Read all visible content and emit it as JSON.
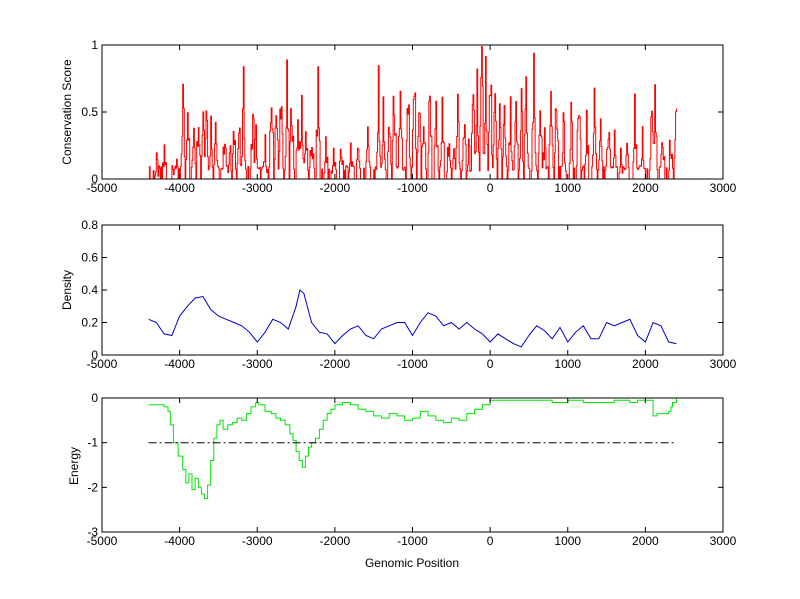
{
  "colors": {
    "background": "#ffffff",
    "axes": "#000000",
    "conservation": "#ff0000",
    "density": "#0000c8",
    "energy": "#00e600",
    "threshold": "#000000"
  },
  "chart_data": [
    {
      "type": "line",
      "xlabel": "",
      "ylabel": "Conservation Score",
      "xlim": [
        -5000,
        3000
      ],
      "ylim": [
        0,
        1
      ],
      "xticks": [
        -5000,
        -4000,
        -3000,
        -2000,
        -1000,
        0,
        1000,
        2000,
        3000
      ],
      "yticks": [
        0,
        0.5,
        1
      ],
      "xtick_labels": [
        "-5000",
        "-4000",
        "-3000",
        "-2000",
        "-1000",
        "0",
        "1000",
        "2000",
        "3000"
      ],
      "ytick_labels": [
        "0",
        "0.5",
        "1"
      ],
      "grid": false,
      "series": [
        {
          "color": "#ff0000",
          "x_range": [
            -4400,
            2400
          ],
          "step": 10,
          "baseline": 0.1,
          "peaks": [
            [
              -4300,
              0.1
            ],
            [
              -4200,
              0.2
            ],
            [
              -4060,
              0.15
            ],
            [
              -3960,
              0.74
            ],
            [
              -3900,
              0.72
            ],
            [
              -3820,
              0.55
            ],
            [
              -3760,
              0.65
            ],
            [
              -3700,
              0.7
            ],
            [
              -3660,
              0.8
            ],
            [
              -3600,
              0.45
            ],
            [
              -3540,
              0.55
            ],
            [
              -3420,
              0.45
            ],
            [
              -3360,
              0.25
            ],
            [
              -3300,
              0.4
            ],
            [
              -3240,
              0.45
            ],
            [
              -3180,
              0.75
            ],
            [
              -3060,
              0.6
            ],
            [
              -3020,
              0.35
            ],
            [
              -2900,
              0.25
            ],
            [
              -2820,
              0.8
            ],
            [
              -2760,
              0.75
            ],
            [
              -2700,
              0.8
            ],
            [
              -2620,
              0.8
            ],
            [
              -2560,
              0.72
            ],
            [
              -2480,
              0.55
            ],
            [
              -2430,
              0.6
            ],
            [
              -2380,
              0.45
            ],
            [
              -2300,
              0.35
            ],
            [
              -2220,
              0.8
            ],
            [
              -2120,
              0.25
            ],
            [
              -2020,
              0.2
            ],
            [
              -1920,
              0.2
            ],
            [
              -1800,
              0.25
            ],
            [
              -1700,
              0.3
            ],
            [
              -1580,
              0.55
            ],
            [
              -1440,
              0.75
            ],
            [
              -1380,
              0.55
            ],
            [
              -1300,
              0.45
            ],
            [
              -1240,
              0.8
            ],
            [
              -1160,
              0.8
            ],
            [
              -1060,
              0.7
            ],
            [
              -980,
              0.9
            ],
            [
              -920,
              0.75
            ],
            [
              -860,
              0.55
            ],
            [
              -780,
              0.8
            ],
            [
              -700,
              0.5
            ],
            [
              -620,
              0.55
            ],
            [
              -540,
              0.25
            ],
            [
              -470,
              0.35
            ],
            [
              -420,
              0.6
            ],
            [
              -340,
              0.55
            ],
            [
              -280,
              0.25
            ],
            [
              -220,
              0.8
            ],
            [
              -170,
              0.85
            ],
            [
              -110,
              1.0
            ],
            [
              -60,
              0.95
            ],
            [
              0,
              0.95
            ],
            [
              60,
              0.6
            ],
            [
              120,
              0.55
            ],
            [
              180,
              0.75
            ],
            [
              260,
              0.55
            ],
            [
              330,
              0.55
            ],
            [
              400,
              0.7
            ],
            [
              460,
              0.75
            ],
            [
              560,
              0.85
            ],
            [
              640,
              0.75
            ],
            [
              700,
              0.3
            ],
            [
              780,
              1.0
            ],
            [
              850,
              0.75
            ],
            [
              940,
              0.5
            ],
            [
              1040,
              0.6
            ],
            [
              1140,
              0.85
            ],
            [
              1240,
              0.45
            ],
            [
              1340,
              0.75
            ],
            [
              1420,
              0.6
            ],
            [
              1520,
              0.45
            ],
            [
              1600,
              0.35
            ],
            [
              1680,
              0.2
            ],
            [
              1760,
              0.35
            ],
            [
              1860,
              0.55
            ],
            [
              1960,
              0.35
            ],
            [
              2080,
              0.65
            ],
            [
              2120,
              0.7
            ],
            [
              2220,
              0.35
            ],
            [
              2320,
              0.3
            ],
            [
              2390,
              0.65
            ]
          ]
        }
      ]
    },
    {
      "type": "line",
      "xlabel": "",
      "ylabel": "Density",
      "xlim": [
        -5000,
        3000
      ],
      "ylim": [
        0,
        0.8
      ],
      "xticks": [
        -5000,
        -4000,
        -3000,
        -2000,
        -1000,
        0,
        1000,
        2000,
        3000
      ],
      "yticks": [
        0,
        0.2,
        0.4,
        0.6,
        0.8
      ],
      "xtick_labels": [
        "-5000",
        "-4000",
        "-3000",
        "-2000",
        "-1000",
        "0",
        "1000",
        "2000",
        "3000"
      ],
      "ytick_labels": [
        "0",
        "0.2",
        "0.4",
        "0.6",
        "0.8"
      ],
      "grid": false,
      "series": [
        {
          "color": "#0000c8",
          "x": [
            -4400,
            -4300,
            -4200,
            -4100,
            -4000,
            -3900,
            -3800,
            -3700,
            -3600,
            -3500,
            -3400,
            -3300,
            -3200,
            -3100,
            -3000,
            -2900,
            -2800,
            -2700,
            -2600,
            -2500,
            -2450,
            -2400,
            -2300,
            -2200,
            -2100,
            -2000,
            -1900,
            -1800,
            -1700,
            -1600,
            -1500,
            -1400,
            -1300,
            -1200,
            -1100,
            -1000,
            -900,
            -800,
            -700,
            -600,
            -500,
            -400,
            -300,
            -200,
            -100,
            0,
            100,
            200,
            300,
            400,
            500,
            600,
            700,
            800,
            900,
            1000,
            1100,
            1200,
            1300,
            1400,
            1500,
            1600,
            1700,
            1800,
            1900,
            2000,
            2100,
            2200,
            2300,
            2400
          ],
          "y": [
            0.22,
            0.2,
            0.13,
            0.12,
            0.24,
            0.3,
            0.35,
            0.36,
            0.28,
            0.24,
            0.22,
            0.2,
            0.18,
            0.14,
            0.08,
            0.14,
            0.22,
            0.2,
            0.16,
            0.3,
            0.4,
            0.38,
            0.2,
            0.14,
            0.13,
            0.07,
            0.12,
            0.16,
            0.18,
            0.12,
            0.1,
            0.16,
            0.18,
            0.2,
            0.2,
            0.12,
            0.2,
            0.26,
            0.24,
            0.18,
            0.2,
            0.16,
            0.2,
            0.16,
            0.13,
            0.08,
            0.13,
            0.1,
            0.07,
            0.05,
            0.12,
            0.18,
            0.15,
            0.1,
            0.17,
            0.08,
            0.14,
            0.18,
            0.1,
            0.1,
            0.2,
            0.18,
            0.2,
            0.22,
            0.12,
            0.08,
            0.2,
            0.18,
            0.08,
            0.07
          ]
        }
      ]
    },
    {
      "type": "line",
      "xlabel": "Genomic Position",
      "ylabel": "Energy",
      "xlim": [
        -5000,
        3000
      ],
      "ylim": [
        -3,
        0
      ],
      "xticks": [
        -5000,
        -4000,
        -3000,
        -2000,
        -1000,
        0,
        1000,
        2000,
        3000
      ],
      "yticks": [
        -3,
        -2,
        -1,
        0
      ],
      "xtick_labels": [
        "-5000",
        "-4000",
        "-3000",
        "-2000",
        "-1000",
        "0",
        "1000",
        "2000",
        "3000"
      ],
      "ytick_labels": [
        "-3",
        "-2",
        "-1",
        "0"
      ],
      "grid": false,
      "series": [
        {
          "color": "#00e600",
          "step": true,
          "x": [
            -4400,
            -4300,
            -4200,
            -4150,
            -4120,
            -4080,
            -4020,
            -3960,
            -3920,
            -3880,
            -3840,
            -3800,
            -3760,
            -3720,
            -3680,
            -3640,
            -3600,
            -3560,
            -3520,
            -3480,
            -3440,
            -3380,
            -3320,
            -3260,
            -3200,
            -3140,
            -3080,
            -3020,
            -2980,
            -2900,
            -2820,
            -2760,
            -2700,
            -2640,
            -2580,
            -2540,
            -2500,
            -2460,
            -2420,
            -2380,
            -2340,
            -2300,
            -2250,
            -2200,
            -2150,
            -2100,
            -2050,
            -2000,
            -1900,
            -1800,
            -1700,
            -1600,
            -1500,
            -1400,
            -1300,
            -1200,
            -1100,
            -1000,
            -900,
            -800,
            -700,
            -600,
            -500,
            -400,
            -300,
            -200,
            -100,
            0,
            100,
            200,
            400,
            600,
            800,
            1000,
            1200,
            1400,
            1600,
            1800,
            1900,
            2000,
            2100,
            2150,
            2200,
            2300,
            2330,
            2350,
            2400
          ],
          "y": [
            -0.15,
            -0.15,
            -0.2,
            -0.3,
            -0.6,
            -1.0,
            -1.3,
            -1.6,
            -1.9,
            -1.7,
            -2.05,
            -1.8,
            -2.0,
            -2.15,
            -2.25,
            -1.95,
            -1.4,
            -0.9,
            -0.6,
            -0.5,
            -0.7,
            -0.6,
            -0.55,
            -0.45,
            -0.5,
            -0.35,
            -0.2,
            -0.1,
            -0.15,
            -0.3,
            -0.35,
            -0.45,
            -0.5,
            -0.6,
            -0.8,
            -0.95,
            -1.2,
            -1.4,
            -1.55,
            -1.3,
            -1.1,
            -1.0,
            -0.9,
            -0.7,
            -0.5,
            -0.35,
            -0.25,
            -0.15,
            -0.1,
            -0.15,
            -0.25,
            -0.3,
            -0.4,
            -0.45,
            -0.35,
            -0.4,
            -0.5,
            -0.45,
            -0.3,
            -0.4,
            -0.5,
            -0.55,
            -0.45,
            -0.5,
            -0.35,
            -0.25,
            -0.15,
            -0.05,
            -0.05,
            -0.05,
            -0.05,
            -0.05,
            -0.1,
            -0.05,
            -0.1,
            -0.1,
            -0.05,
            -0.1,
            -0.05,
            -0.05,
            -0.4,
            -0.35,
            -0.35,
            -0.3,
            -0.2,
            -0.1,
            0.0
          ]
        },
        {
          "color": "#000000",
          "style": "dash-dot",
          "x": [
            -4400,
            2400
          ],
          "y": [
            -1,
            -1
          ]
        }
      ]
    }
  ]
}
